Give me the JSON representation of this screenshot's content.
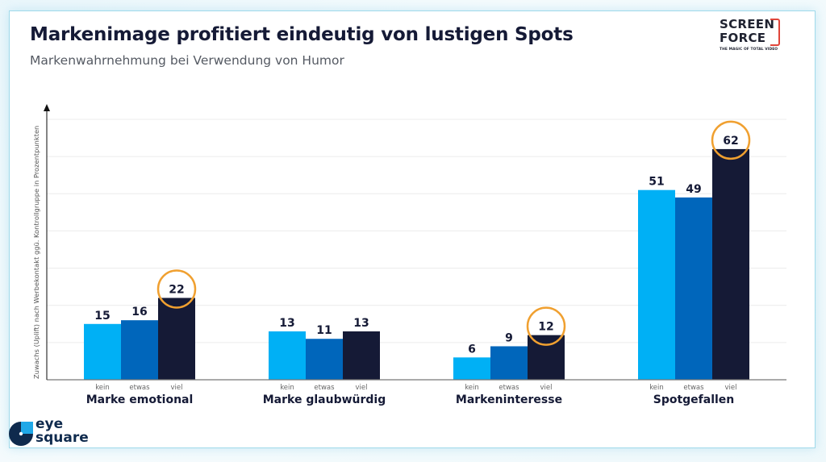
{
  "slide": {
    "title": "Markenimage profitiert eindeutig von lustigen Spots",
    "subtitle": "Markenwahrnehmung bei Verwendung von Humor"
  },
  "logos": {
    "screenforce": {
      "line1": "SCREEN",
      "line2": "FORCE",
      "tagline": "THE MAGIC OF TOTAL VIDEO",
      "accent": "#e0453a"
    },
    "eyesquare": {
      "line1": "eye",
      "line2": "square",
      "dark": "#0f2a4d",
      "light": "#1fa8e8"
    }
  },
  "colors": {
    "kein": "#00b0f5",
    "etwas": "#0066bb",
    "viel": "#151a36",
    "highlight_circle": "#f0a030",
    "axis": "#333333",
    "grid": "#ececec"
  },
  "chart_data": {
    "type": "bar",
    "title": "Markenimage profitiert eindeutig von lustigen Spots",
    "subtitle": "Markenwahrnehmung bei Verwendung von Humor",
    "xlabel": "",
    "ylabel": "Zuwachs (Uplift) nach Werbekontakt ggü. Kontrollgruppe in Prozentpunkten",
    "ylim": [
      0,
      70
    ],
    "grid": true,
    "legend": "none (sub-category labels under each bar)",
    "categories": [
      "Marke emotional",
      "Marke glaubwürdig",
      "Markeninteresse",
      "Spotgefallen"
    ],
    "subcategories": [
      "kein",
      "etwas",
      "viel"
    ],
    "series": [
      {
        "name": "kein",
        "values": [
          15,
          13,
          6,
          51
        ]
      },
      {
        "name": "etwas",
        "values": [
          16,
          11,
          9,
          49
        ]
      },
      {
        "name": "viel",
        "values": [
          22,
          13,
          12,
          62
        ]
      }
    ],
    "highlighted": [
      {
        "category": "Marke emotional",
        "series": "viel",
        "value": 22
      },
      {
        "category": "Markeninteresse",
        "series": "viel",
        "value": 12
      },
      {
        "category": "Spotgefallen",
        "series": "viel",
        "value": 62
      }
    ]
  }
}
